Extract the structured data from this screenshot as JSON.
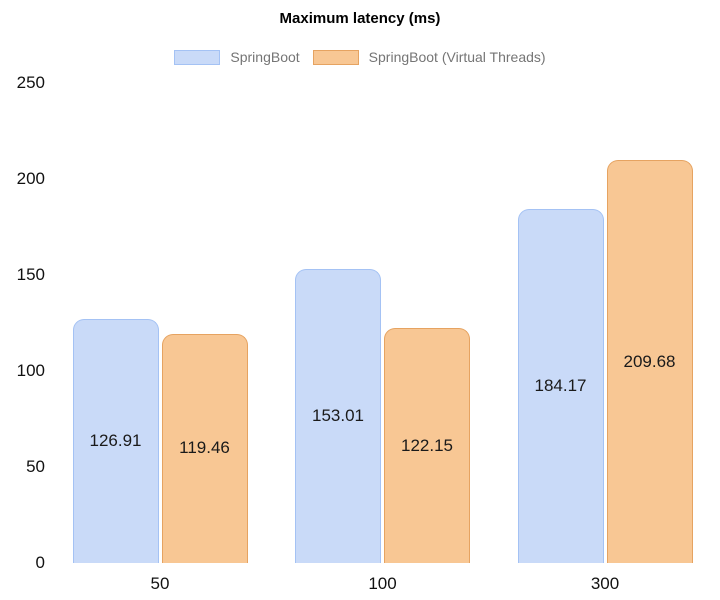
{
  "chart_data": {
    "type": "bar",
    "title": "Maximum latency (ms)",
    "categories": [
      "50",
      "100",
      "300"
    ],
    "series": [
      {
        "name": "SpringBoot",
        "values": [
          126.91,
          153.01,
          184.17
        ],
        "fill": "#c9daf8",
        "border": "#a4c2f4"
      },
      {
        "name": "SpringBoot (Virtual Threads)",
        "values": [
          119.46,
          122.15,
          209.68
        ],
        "fill": "#f8c794",
        "border": "#e6a361"
      }
    ],
    "value_labels": [
      [
        "126.91",
        "153.01",
        "184.17"
      ],
      [
        "119.46",
        "122.15",
        "209.68"
      ]
    ],
    "xlabel": "",
    "ylabel": "",
    "ylim": [
      0,
      250
    ],
    "yticks": [
      0,
      50,
      100,
      150,
      200,
      250
    ],
    "grid": false,
    "legend_position": "top",
    "colors": {
      "background": "#ffffff",
      "title_text": "#000000",
      "legend_text": "#757575",
      "axis_text": "#111111",
      "bar_label_text": "#1a1a1a"
    }
  }
}
